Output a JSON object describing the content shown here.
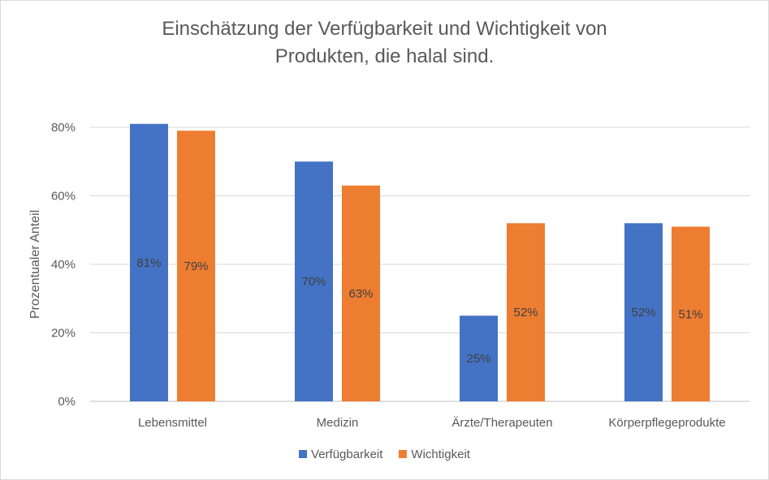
{
  "chart_data": {
    "type": "bar",
    "title_line1": "Einschätzung der Verfügbarkeit und Wichtigkeit von",
    "title_line2": "Produkten, die halal sind.",
    "xlabel": "",
    "ylabel": "Prozentualer Anteil",
    "ylim": [
      0,
      80
    ],
    "yticks": [
      "0%",
      "20%",
      "40%",
      "60%",
      "80%"
    ],
    "categories": [
      "Lebensmittel",
      "Medizin",
      "Ärzte/Therapeuten",
      "Körperpflegeprodukte"
    ],
    "series": [
      {
        "name": "Verfügbarkeit",
        "color": "#4472c4",
        "values": [
          81,
          70,
          25,
          52
        ],
        "labels": [
          "81%",
          "70%",
          "25%",
          "52%"
        ]
      },
      {
        "name": "Wichtigkeit",
        "color": "#ed7d31",
        "values": [
          79,
          63,
          52,
          51
        ],
        "labels": [
          "79%",
          "63%",
          "52%",
          "51%"
        ]
      }
    ],
    "grid": true,
    "legend": "bottom"
  }
}
